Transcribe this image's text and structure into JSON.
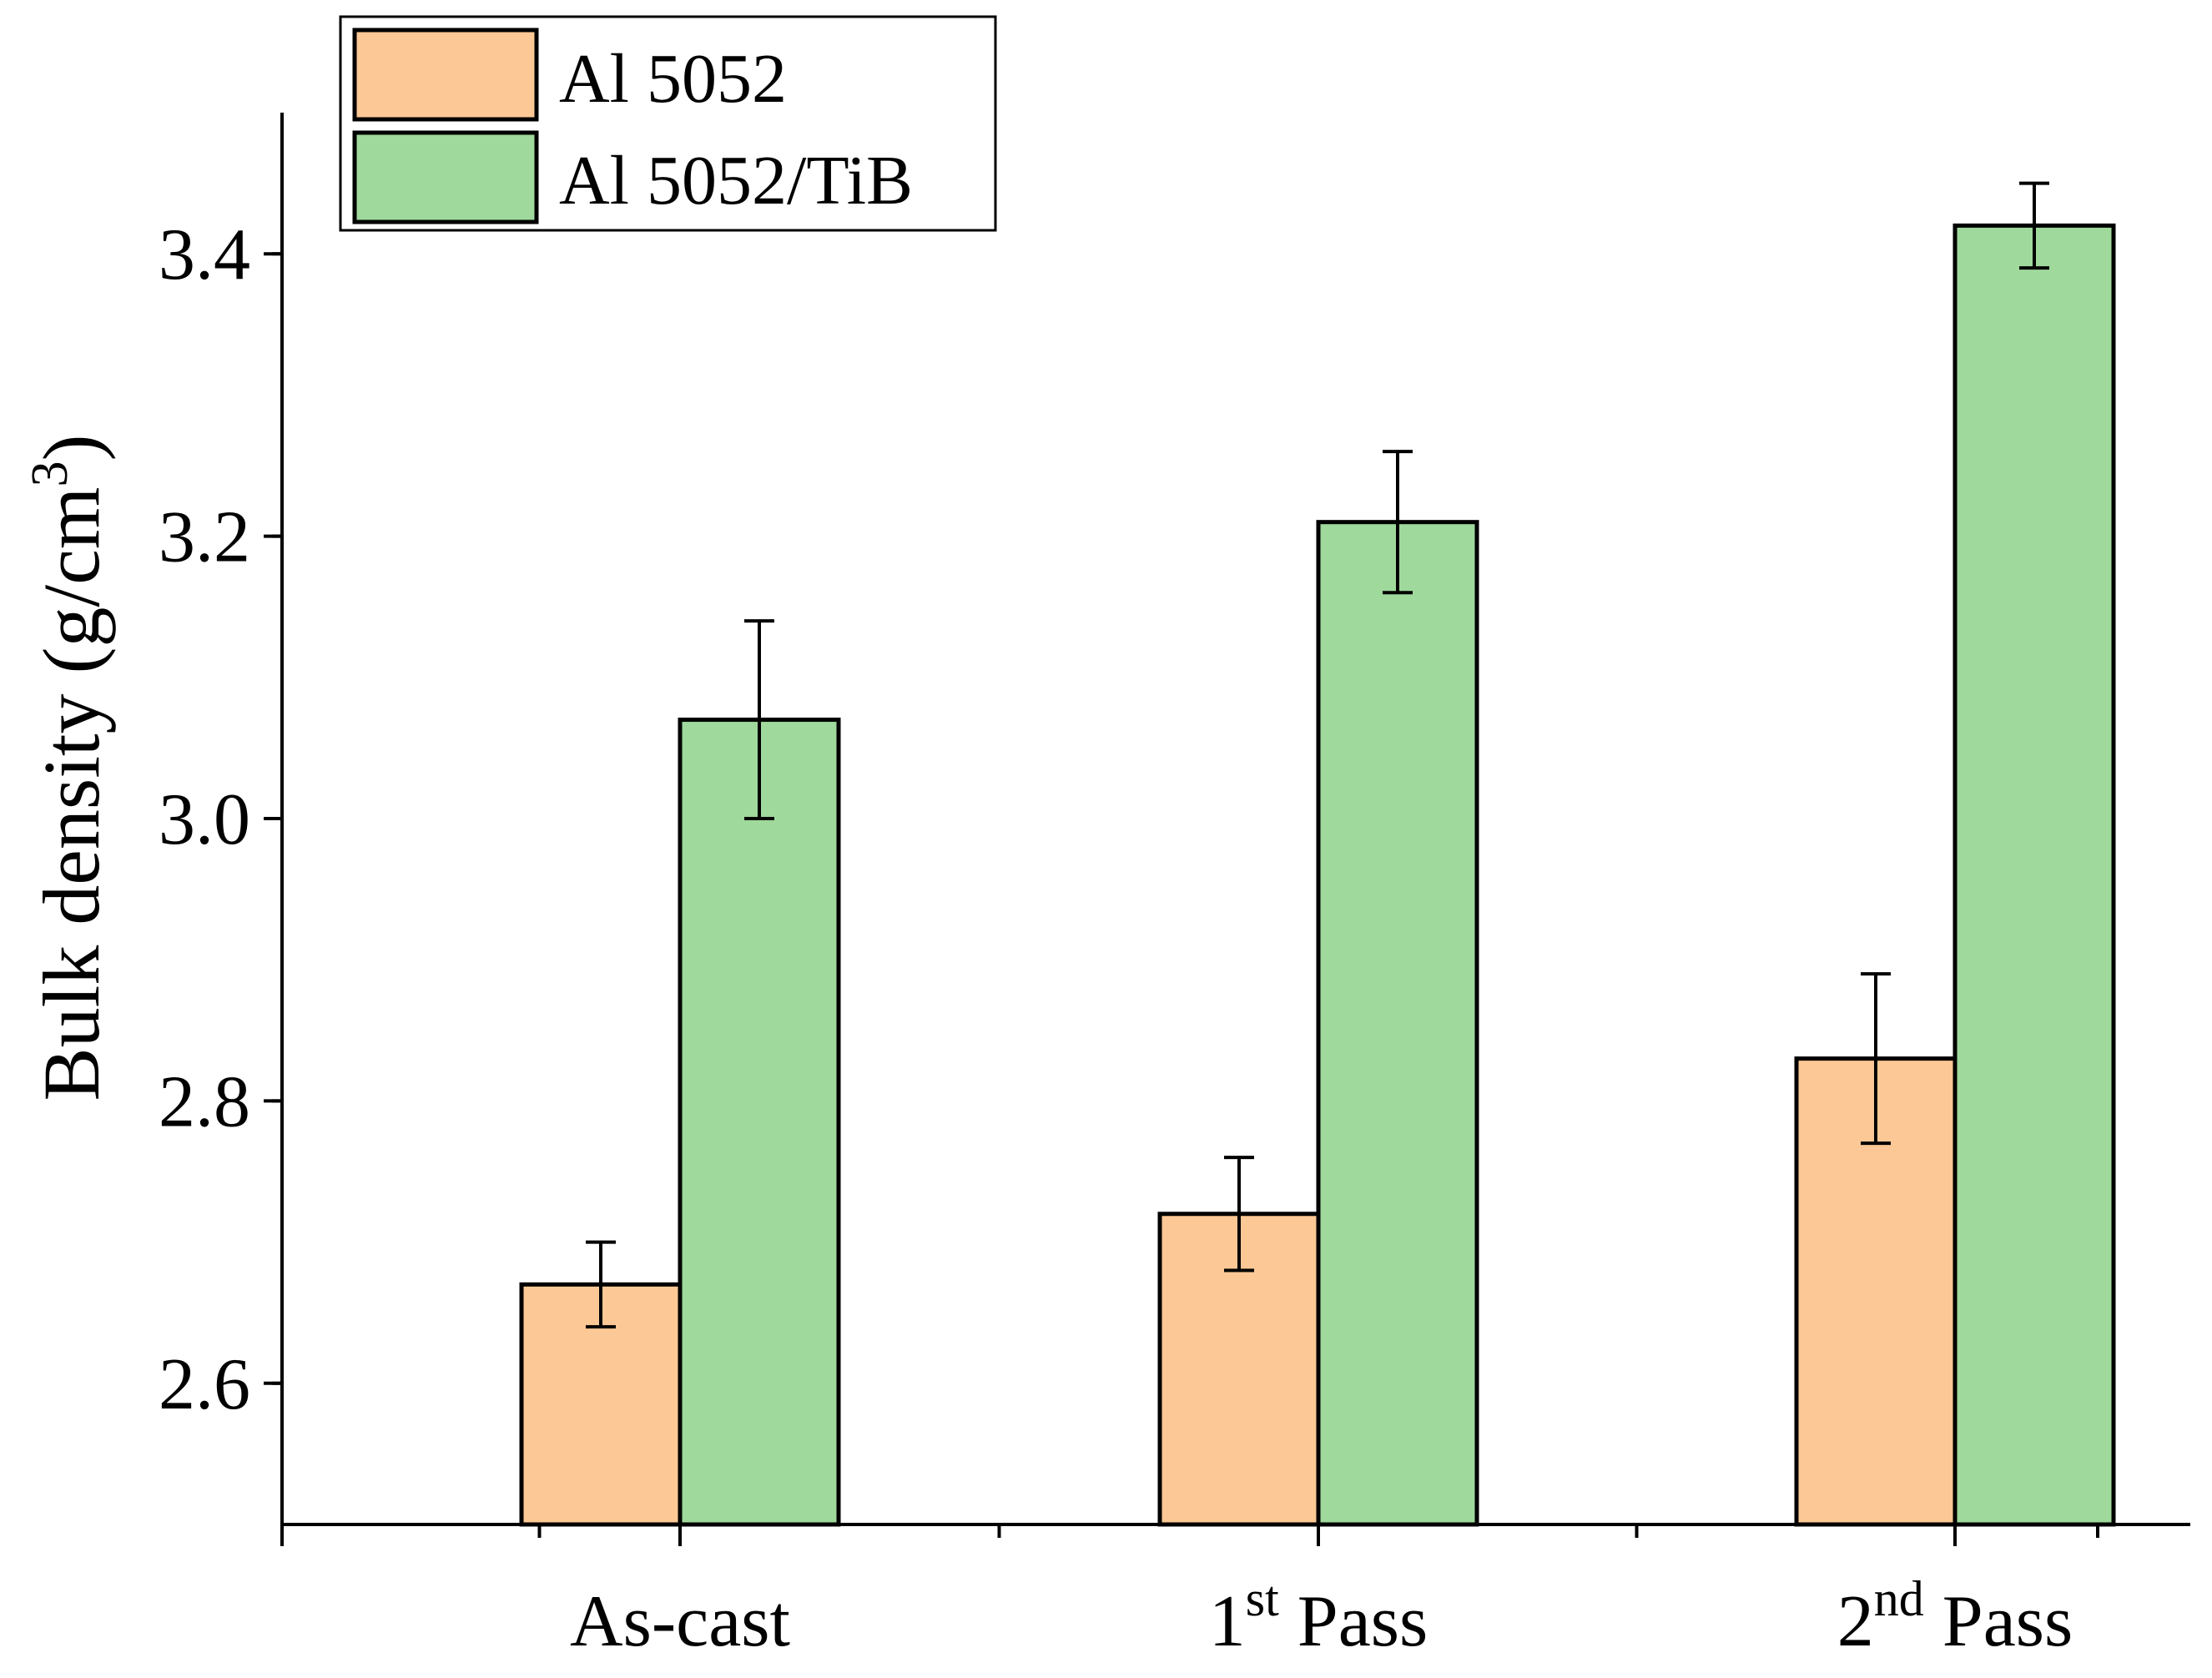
{
  "chart_data": {
    "type": "bar",
    "title": "",
    "xlabel": "",
    "ylabel": "Bulk density (g/cm",
    "ylabel_superscript": "3",
    "ylabel_suffix": ")",
    "ylim": [
      2.5,
      3.5
    ],
    "yticks": [
      "2.6",
      "2.8",
      "3.0",
      "3.2",
      "3.4"
    ],
    "categories": [
      {
        "label": "As-cast",
        "base": "As-cast",
        "sup": "",
        "suffix": ""
      },
      {
        "label": "1st Pass",
        "base": "1",
        "sup": "st",
        "suffix": " Pass"
      },
      {
        "label": "2nd Pass",
        "base": "2",
        "sup": "nd",
        "suffix": " Pass"
      }
    ],
    "series": [
      {
        "name": "Al 5052",
        "color": "#FCC895",
        "values": [
          2.67,
          2.72,
          2.83
        ],
        "errors": [
          0.03,
          0.04,
          0.06
        ]
      },
      {
        "name": "Al 5052/TiB",
        "color": "#9FD99C",
        "values": [
          3.07,
          3.21,
          3.42
        ],
        "errors": [
          0.07,
          0.05,
          0.03
        ]
      }
    ],
    "grid": false,
    "legend_position": "top-left"
  }
}
